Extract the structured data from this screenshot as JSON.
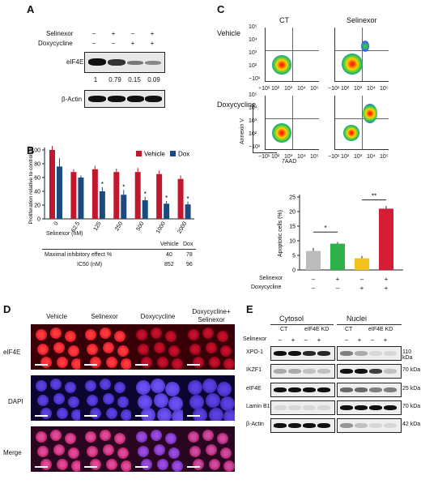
{
  "panels": {
    "A": "A",
    "B": "B",
    "C": "C",
    "D": "D",
    "E": "E"
  },
  "panelA": {
    "rows": [
      "Selinexor",
      "Doxycycline"
    ],
    "signs": [
      [
        "–",
        "+",
        "–",
        "+"
      ],
      [
        "–",
        "–",
        "+",
        "+"
      ]
    ],
    "blot1": "eIF4E",
    "blot2": "β-Actin",
    "quant": [
      "1",
      "0.79",
      "0.15",
      "0.09"
    ]
  },
  "panelB": {
    "legend": [
      "Vehicle",
      "Dox"
    ],
    "colors": {
      "vehicle": "#c0182f",
      "dox": "#1a4a80"
    },
    "ylabel": "Proliferation relative to control (%)",
    "xlabel": "Selinexor (nM)",
    "yticks": [
      "0",
      "20",
      "40",
      "60",
      "80",
      "100"
    ],
    "table_head": [
      "Vehicle",
      "Dox"
    ],
    "table_rows": [
      {
        "label": "Maximal inhibitory effect %",
        "v": "40",
        "d": "78"
      },
      {
        "label": "IC50 (nM)",
        "v": "852",
        "d": "96"
      }
    ],
    "star": "*"
  },
  "chart_data": [
    {
      "type": "bar",
      "categories": [
        "0",
        "62.5",
        "125",
        "250",
        "500",
        "1000",
        "2000"
      ],
      "series": [
        {
          "name": "Vehicle",
          "values": [
            100,
            68,
            72,
            68,
            68,
            65,
            58
          ]
        },
        {
          "name": "Dox",
          "values": [
            76,
            60,
            40,
            35,
            27,
            22,
            21
          ]
        }
      ],
      "xlabel": "Selinexor (nM)",
      "ylabel": "Proliferation relative to control (%)",
      "ylim": [
        0,
        100
      ]
    },
    {
      "type": "bar",
      "categories": [
        "1",
        "2",
        "3",
        "4"
      ],
      "values": [
        6.5,
        9,
        4,
        21
      ],
      "ylabel": "Apoptotic cells (%)",
      "ylim": [
        0,
        25
      ]
    }
  ],
  "panelC": {
    "cols": [
      "CT",
      "Selinexor"
    ],
    "rows": [
      "Vehicle",
      "Doxycycline"
    ],
    "yaxis": "Annexin V",
    "xaxis": "7AAD",
    "xticks": [
      "−10¹",
      "10²",
      "10³",
      "10⁴",
      "10⁵"
    ],
    "yticks": [
      "10⁵",
      "10⁴",
      "10³",
      "10²",
      "−10¹"
    ],
    "apop_ylabel": "Apoptotic cells (%)",
    "apop_yticks": [
      "0",
      "5",
      "10",
      "15",
      "20",
      "25"
    ],
    "apop_rows": [
      "Selinexor",
      "Doxycycline"
    ],
    "apop_signs": [
      [
        "–",
        "+",
        "–",
        "+"
      ],
      [
        "–",
        "–",
        "+",
        "+"
      ]
    ],
    "apop_colors": [
      "#bcbcbc",
      "#2db24a",
      "#f4c21c",
      "#d51e35"
    ],
    "sig": [
      "*",
      "**"
    ]
  },
  "panelD": {
    "cols": [
      "Vehicle",
      "Selinexor",
      "Doxycycline",
      "Doxycycline+\nSelinexor"
    ],
    "rows": [
      "eIF4E",
      "DAPI",
      "Merge"
    ]
  },
  "panelE": {
    "groups": [
      "Cytosol",
      "Nuclei"
    ],
    "sub": [
      "CT",
      "eIF4E KD",
      "CT",
      "eIF4E KD"
    ],
    "selinexor": "Selinexor",
    "signs": [
      "–",
      "+",
      "–",
      "+",
      "–",
      "+",
      "–",
      "+"
    ],
    "blots": [
      "XPO-1",
      "IKZF1",
      "eIF4E",
      "Lamin B1",
      "β-Actin"
    ],
    "kda": [
      "110 kDa",
      "70 kDa",
      "25 kDa",
      "70 kDa",
      "42 kDa"
    ]
  }
}
